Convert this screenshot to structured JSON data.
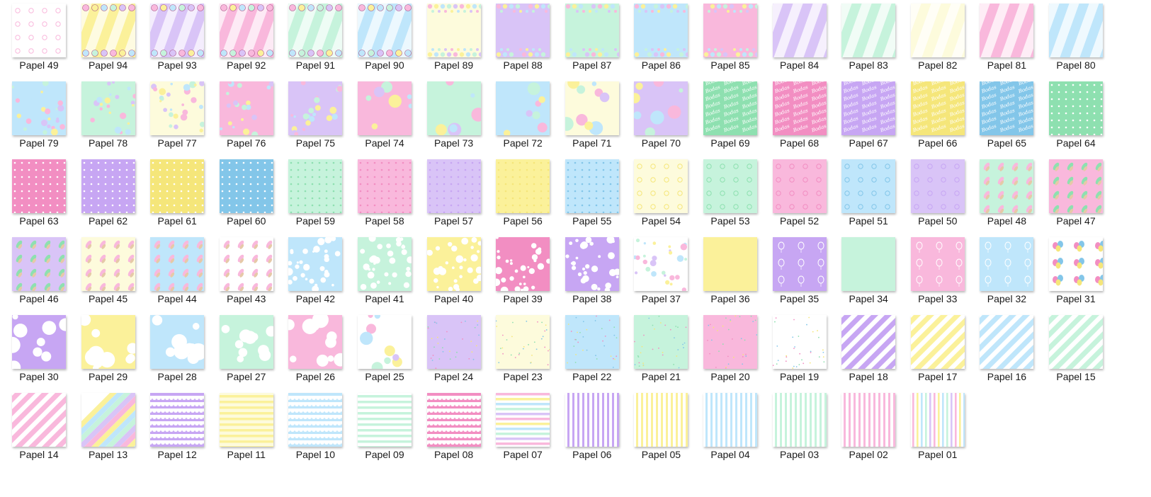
{
  "colors": {
    "pink": "#f9b8dc",
    "purple": "#d9c4f7",
    "yellow": "#fbf19a",
    "blue": "#bfe6fb",
    "mint": "#c6f3dc",
    "cream": "#fdfbdc",
    "hot_pink": "#f28ec2",
    "violet": "#c7a6f3",
    "gold": "#f5e67a",
    "sky": "#83c6e9",
    "green": "#8ee0b0",
    "white": "#ffffff"
  },
  "files": [
    {
      "label": "Papel 49",
      "pattern": "icons",
      "bg": "white",
      "accent": "pink"
    },
    {
      "label": "Papel 94",
      "pattern": "diag-border",
      "bg": "yellow",
      "accent": "white"
    },
    {
      "label": "Papel 93",
      "pattern": "diag-border",
      "bg": "purple",
      "accent": "white"
    },
    {
      "label": "Papel 92",
      "pattern": "diag-border",
      "bg": "pink",
      "accent": "white"
    },
    {
      "label": "Papel 91",
      "pattern": "diag-border",
      "bg": "mint",
      "accent": "white"
    },
    {
      "label": "Papel 90",
      "pattern": "diag-border",
      "bg": "blue",
      "accent": "white"
    },
    {
      "label": "Papel 89",
      "pattern": "dot-border",
      "bg": "cream",
      "accent": "pink"
    },
    {
      "label": "Papel 88",
      "pattern": "dot-border",
      "bg": "purple",
      "accent": "yellow"
    },
    {
      "label": "Papel 87",
      "pattern": "dot-border",
      "bg": "mint",
      "accent": "pink"
    },
    {
      "label": "Papel 86",
      "pattern": "dot-border",
      "bg": "blue",
      "accent": "pink"
    },
    {
      "label": "Papel 85",
      "pattern": "dot-border",
      "bg": "pink",
      "accent": "yellow"
    },
    {
      "label": "Papel 84",
      "pattern": "diag",
      "bg": "purple",
      "accent": "white"
    },
    {
      "label": "Papel 83",
      "pattern": "diag",
      "bg": "mint",
      "accent": "white"
    },
    {
      "label": "Papel 82",
      "pattern": "diag",
      "bg": "cream",
      "accent": "white"
    },
    {
      "label": "Papel 81",
      "pattern": "diag",
      "bg": "pink",
      "accent": "white"
    },
    {
      "label": "Papel 80",
      "pattern": "diag",
      "bg": "blue",
      "accent": "white"
    },
    {
      "label": "Papel 79",
      "pattern": "confetti",
      "bg": "blue",
      "accent": "pink"
    },
    {
      "label": "Papel 78",
      "pattern": "confetti",
      "bg": "mint",
      "accent": "pink"
    },
    {
      "label": "Papel 77",
      "pattern": "confetti",
      "bg": "cream",
      "accent": "pink"
    },
    {
      "label": "Papel 76",
      "pattern": "confetti",
      "bg": "pink",
      "accent": "yellow"
    },
    {
      "label": "Papel 75",
      "pattern": "confetti",
      "bg": "purple",
      "accent": "pink"
    },
    {
      "label": "Papel 74",
      "pattern": "bigdots",
      "bg": "pink",
      "accent": "yellow"
    },
    {
      "label": "Papel 73",
      "pattern": "bigdots",
      "bg": "mint",
      "accent": "pink"
    },
    {
      "label": "Papel 72",
      "pattern": "bigdots",
      "bg": "blue",
      "accent": "pink"
    },
    {
      "label": "Papel 71",
      "pattern": "bigdots",
      "bg": "cream",
      "accent": "pink"
    },
    {
      "label": "Papel 70",
      "pattern": "bigdots",
      "bg": "purple",
      "accent": "yellow"
    },
    {
      "label": "Papel 69",
      "pattern": "script",
      "bg": "green",
      "accent": "white"
    },
    {
      "label": "Papel 68",
      "pattern": "script",
      "bg": "hot_pink",
      "accent": "white"
    },
    {
      "label": "Papel 67",
      "pattern": "script",
      "bg": "violet",
      "accent": "white"
    },
    {
      "label": "Papel 66",
      "pattern": "script",
      "bg": "gold",
      "accent": "white"
    },
    {
      "label": "Papel 65",
      "pattern": "script",
      "bg": "sky",
      "accent": "white"
    },
    {
      "label": "Papel 64",
      "pattern": "stars",
      "bg": "green",
      "accent": "white"
    },
    {
      "label": "Papel 63",
      "pattern": "stars",
      "bg": "hot_pink",
      "accent": "white"
    },
    {
      "label": "Papel 62",
      "pattern": "stars",
      "bg": "violet",
      "accent": "white"
    },
    {
      "label": "Papel 61",
      "pattern": "stars",
      "bg": "gold",
      "accent": "white"
    },
    {
      "label": "Papel 60",
      "pattern": "stars",
      "bg": "sky",
      "accent": "white"
    },
    {
      "label": "Papel 59",
      "pattern": "stars",
      "bg": "mint",
      "accent": "green"
    },
    {
      "label": "Papel 58",
      "pattern": "stars",
      "bg": "pink",
      "accent": "hot_pink"
    },
    {
      "label": "Papel 57",
      "pattern": "stars",
      "bg": "purple",
      "accent": "violet"
    },
    {
      "label": "Papel 56",
      "pattern": "stars",
      "bg": "yellow",
      "accent": "gold"
    },
    {
      "label": "Papel 55",
      "pattern": "stars",
      "bg": "blue",
      "accent": "sky"
    },
    {
      "label": "Papel 54",
      "pattern": "icons",
      "bg": "cream",
      "accent": "gold"
    },
    {
      "label": "Papel 53",
      "pattern": "icons",
      "bg": "mint",
      "accent": "green"
    },
    {
      "label": "Papel 52",
      "pattern": "icons",
      "bg": "pink",
      "accent": "hot_pink"
    },
    {
      "label": "Papel 51",
      "pattern": "icons",
      "bg": "blue",
      "accent": "sky"
    },
    {
      "label": "Papel 50",
      "pattern": "icons",
      "bg": "purple",
      "accent": "violet"
    },
    {
      "label": "Papel 48",
      "pattern": "leaves",
      "bg": "mint",
      "accent": "pink"
    },
    {
      "label": "Papel 47",
      "pattern": "leaves",
      "bg": "pink",
      "accent": "green"
    },
    {
      "label": "Papel 46",
      "pattern": "leaves",
      "bg": "purple",
      "accent": "green"
    },
    {
      "label": "Papel 45",
      "pattern": "leaves",
      "bg": "cream",
      "accent": "pink"
    },
    {
      "label": "Papel 44",
      "pattern": "leaves",
      "bg": "blue",
      "accent": "pink"
    },
    {
      "label": "Papel 43",
      "pattern": "leaves",
      "bg": "white",
      "accent": "pink"
    },
    {
      "label": "Papel 42",
      "pattern": "bubbles",
      "bg": "blue",
      "accent": "white"
    },
    {
      "label": "Papel 41",
      "pattern": "bubbles",
      "bg": "mint",
      "accent": "white"
    },
    {
      "label": "Papel 40",
      "pattern": "bubbles",
      "bg": "yellow",
      "accent": "white"
    },
    {
      "label": "Papel 39",
      "pattern": "bubbles",
      "bg": "hot_pink",
      "accent": "white"
    },
    {
      "label": "Papel 38",
      "pattern": "bubbles",
      "bg": "violet",
      "accent": "white"
    },
    {
      "label": "Papel 37",
      "pattern": "confetti",
      "bg": "white",
      "accent": "pink"
    },
    {
      "label": "Papel 36",
      "pattern": "plain",
      "bg": "yellow",
      "accent": "yellow"
    },
    {
      "label": "Papel 35",
      "pattern": "balloons",
      "bg": "violet",
      "accent": "white"
    },
    {
      "label": "Papel 34",
      "pattern": "plain",
      "bg": "mint",
      "accent": "mint"
    },
    {
      "label": "Papel 33",
      "pattern": "balloons",
      "bg": "pink",
      "accent": "white"
    },
    {
      "label": "Papel 32",
      "pattern": "balloons",
      "bg": "blue",
      "accent": "white"
    },
    {
      "label": "Papel 31",
      "pattern": "balloons-color",
      "bg": "white",
      "accent": "pink"
    },
    {
      "label": "Papel 30",
      "pattern": "polka",
      "bg": "violet",
      "accent": "white"
    },
    {
      "label": "Papel 29",
      "pattern": "polka",
      "bg": "yellow",
      "accent": "white"
    },
    {
      "label": "Papel 28",
      "pattern": "polka",
      "bg": "blue",
      "accent": "white"
    },
    {
      "label": "Papel 27",
      "pattern": "polka",
      "bg": "mint",
      "accent": "white"
    },
    {
      "label": "Papel 26",
      "pattern": "polka",
      "bg": "pink",
      "accent": "white"
    },
    {
      "label": "Papel 25",
      "pattern": "bigdots",
      "bg": "white",
      "accent": "pink"
    },
    {
      "label": "Papel 24",
      "pattern": "sprinkles",
      "bg": "purple",
      "accent": "hot_pink"
    },
    {
      "label": "Papel 23",
      "pattern": "sprinkles",
      "bg": "cream",
      "accent": "hot_pink"
    },
    {
      "label": "Papel 22",
      "pattern": "sprinkles",
      "bg": "blue",
      "accent": "hot_pink"
    },
    {
      "label": "Papel 21",
      "pattern": "sprinkles",
      "bg": "mint",
      "accent": "hot_pink"
    },
    {
      "label": "Papel 20",
      "pattern": "sprinkles",
      "bg": "pink",
      "accent": "hot_pink"
    },
    {
      "label": "Papel 19",
      "pattern": "sprinkles",
      "bg": "white",
      "accent": "hot_pink"
    },
    {
      "label": "Papel 18",
      "pattern": "stripes-diag",
      "bg": "white",
      "accent": "violet"
    },
    {
      "label": "Papel 17",
      "pattern": "stripes-diag",
      "bg": "white",
      "accent": "yellow"
    },
    {
      "label": "Papel 16",
      "pattern": "stripes-diag",
      "bg": "white",
      "accent": "blue"
    },
    {
      "label": "Papel 15",
      "pattern": "stripes-diag",
      "bg": "white",
      "accent": "mint"
    },
    {
      "label": "Papel 14",
      "pattern": "stripes-diag",
      "bg": "white",
      "accent": "pink"
    },
    {
      "label": "Papel 13",
      "pattern": "stripes-multi",
      "bg": "white",
      "accent": "pink"
    },
    {
      "label": "Papel 12",
      "pattern": "scallop",
      "bg": "violet",
      "accent": "white"
    },
    {
      "label": "Papel 11",
      "pattern": "stripes-h",
      "bg": "cream",
      "accent": "yellow"
    },
    {
      "label": "Papel 10",
      "pattern": "scallop",
      "bg": "blue",
      "accent": "white"
    },
    {
      "label": "Papel 09",
      "pattern": "stripes-h",
      "bg": "white",
      "accent": "mint"
    },
    {
      "label": "Papel 08",
      "pattern": "scallop",
      "bg": "hot_pink",
      "accent": "white"
    },
    {
      "label": "Papel 07",
      "pattern": "stripes-h-multi",
      "bg": "white",
      "accent": "pink"
    },
    {
      "label": "Papel 06",
      "pattern": "stripes-v",
      "bg": "white",
      "accent": "violet"
    },
    {
      "label": "Papel 05",
      "pattern": "stripes-v",
      "bg": "white",
      "accent": "yellow"
    },
    {
      "label": "Papel 04",
      "pattern": "stripes-v",
      "bg": "white",
      "accent": "blue"
    },
    {
      "label": "Papel 03",
      "pattern": "stripes-v",
      "bg": "white",
      "accent": "mint"
    },
    {
      "label": "Papel 02",
      "pattern": "stripes-v",
      "bg": "white",
      "accent": "pink"
    },
    {
      "label": "Papel 01",
      "pattern": "stripes-v-multi",
      "bg": "white",
      "accent": "pink"
    }
  ]
}
